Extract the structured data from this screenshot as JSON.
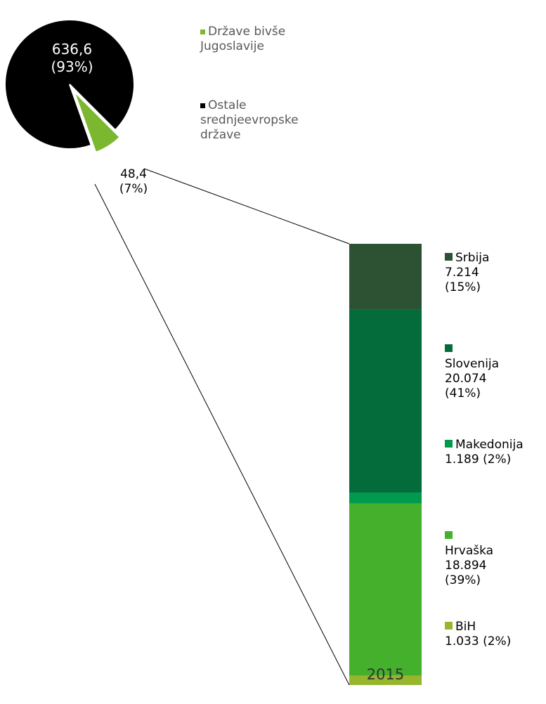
{
  "chart_data": [
    {
      "type": "pie",
      "categories": [
        "Države bivše Jugoslavije",
        "Ostale srednjeevropske države"
      ],
      "values": [
        48.4,
        636.6
      ],
      "value_labels": [
        "48,4 (7%)",
        "636,6 (93%)"
      ],
      "colors": [
        "#7cb82f",
        "#000000"
      ]
    },
    {
      "type": "bar",
      "stacked": true,
      "categories": [
        "2015"
      ],
      "series": [
        {
          "name": "BiH",
          "color": "#97b62d",
          "values": [
            1033
          ],
          "value_labels": [
            "1.033 (2%)"
          ]
        },
        {
          "name": "Hrvaška",
          "color": "#44b02c",
          "values": [
            18894
          ],
          "value_labels": [
            "18.894 (39%)"
          ]
        },
        {
          "name": "Makedonija",
          "color": "#009a4e",
          "values": [
            1189
          ],
          "value_labels": [
            "1.189 (2%)"
          ]
        },
        {
          "name": "Slovenija",
          "color": "#046b3a",
          "values": [
            20074
          ],
          "value_labels": [
            "20.074 (41%)"
          ]
        },
        {
          "name": "Srbija",
          "color": "#2c5233",
          "values": [
            7214
          ],
          "value_labels": [
            "7.214 (15%)"
          ]
        }
      ]
    }
  ]
}
